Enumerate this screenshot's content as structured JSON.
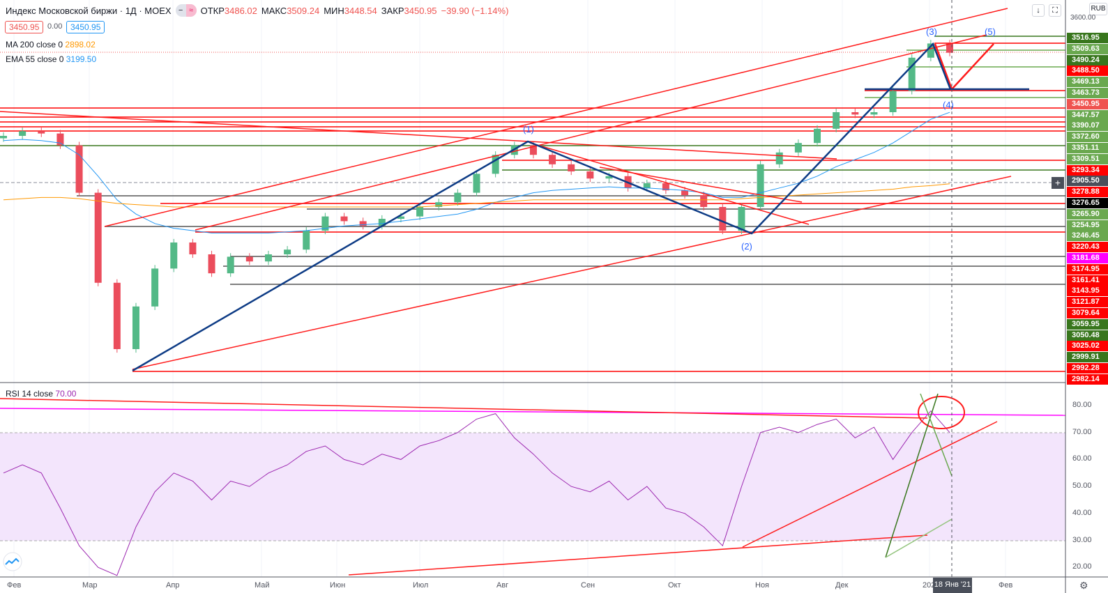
{
  "header": {
    "title": "Индекс Московской биржи · 1Д · MOEX",
    "open_label": "ОТКР",
    "open": "3486.02",
    "high_label": "МАКС",
    "high": "3509.24",
    "low_label": "МИН",
    "low": "3448.54",
    "close_label": "ЗАКР",
    "close": "3450.95",
    "change": "−39.90 (−1.14%)",
    "bid": "3450.95",
    "spread": "0.00",
    "ask": "3450.95"
  },
  "indicators": {
    "ma_label": "MA 200 close 0",
    "ma_value": "2898.02",
    "ema_label": "EMA 55 close 0",
    "ema_value": "3199.50",
    "rsi_label": "RSI 14 close",
    "rsi_value": "70.00"
  },
  "toolbar": {
    "currency": "RUB",
    "down_icon": "arrow-down-icon",
    "fullscreen_icon": "fullscreen-icon"
  },
  "colors": {
    "up": "#53b987",
    "down": "#eb4d5c",
    "ma": "#ff9800",
    "ema": "#2196f3",
    "rsi": "#9c27b0",
    "rsi_band": "#f3e5fc",
    "wave": "#0d3b85",
    "trend": "#ff1a1a"
  },
  "price_axis": {
    "top_tick": "3600.00",
    "labels": [
      {
        "v": "3516.95",
        "c": "#38761d"
      },
      {
        "v": "3509.63",
        "c": "#6aa84f"
      },
      {
        "v": "3490.24",
        "c": "#38761d"
      },
      {
        "v": "3488.50",
        "c": "#ff0000"
      },
      {
        "v": "3469.13",
        "c": "#6aa84f"
      },
      {
        "v": "3463.73",
        "c": "#6aa84f"
      },
      {
        "v": "3450.95",
        "c": "#ef5350"
      },
      {
        "v": "3447.57",
        "c": "#6aa84f"
      },
      {
        "v": "3390.07",
        "c": "#6aa84f"
      },
      {
        "v": "3372.60",
        "c": "#6aa84f"
      },
      {
        "v": "3351.11",
        "c": "#6aa84f"
      },
      {
        "v": "3309.51",
        "c": "#6aa84f"
      },
      {
        "v": "3293.34",
        "c": "#ff0000"
      },
      {
        "v": "2905.50",
        "c": "#4a4f5a"
      },
      {
        "v": "3278.88",
        "c": "#ff0000"
      },
      {
        "v": "3276.65",
        "c": "#000000"
      },
      {
        "v": "3265.90",
        "c": "#6aa84f"
      },
      {
        "v": "3254.95",
        "c": "#6aa84f"
      },
      {
        "v": "3246.45",
        "c": "#6aa84f"
      },
      {
        "v": "3220.43",
        "c": "#ff0000"
      },
      {
        "v": "3181.68",
        "c": "#ff00ff"
      },
      {
        "v": "3174.95",
        "c": "#ff0000"
      },
      {
        "v": "3161.41",
        "c": "#ff0000"
      },
      {
        "v": "3143.95",
        "c": "#ff0000"
      },
      {
        "v": "3121.87",
        "c": "#ff0000"
      },
      {
        "v": "3079.64",
        "c": "#ff0000"
      },
      {
        "v": "3059.95",
        "c": "#38761d"
      },
      {
        "v": "3050.48",
        "c": "#38761d"
      },
      {
        "v": "3025.02",
        "c": "#ff0000"
      },
      {
        "v": "2999.91",
        "c": "#38761d"
      },
      {
        "v": "2992.28",
        "c": "#ff0000"
      },
      {
        "v": "2982.14",
        "c": "#ff0000"
      }
    ]
  },
  "rsi_axis": [
    "80.00",
    "70.00",
    "60.00",
    "50.00",
    "40.00",
    "30.00",
    "20.00"
  ],
  "time_axis": [
    "Фев",
    "Мар",
    "Апр",
    "Май",
    "Июн",
    "Июл",
    "Авг",
    "Сен",
    "Окт",
    "Ноя",
    "Дек",
    "2021",
    "Фев"
  ],
  "crosshair_date": "18 Янв '21",
  "waves": [
    "(1)",
    "(2)",
    "(3)",
    "(4)",
    "(5)"
  ],
  "chart_data": {
    "type": "candlestick",
    "interval": "weekly approximation",
    "ylim": [
      2100,
      3600
    ],
    "close": [
      3100,
      3120,
      3110,
      3060,
      2860,
      2480,
      2200,
      2380,
      2540,
      2650,
      2600,
      2520,
      2590,
      2570,
      2600,
      2620,
      2700,
      2760,
      2740,
      2720,
      2750,
      2760,
      2800,
      2820,
      2860,
      2940,
      3020,
      3060,
      3020,
      2980,
      2950,
      2920,
      2930,
      2880,
      2900,
      2870,
      2850,
      2800,
      2700,
      2800,
      2980,
      3030,
      3070,
      3130,
      3200,
      3190,
      3200,
      3290,
      3430,
      3490,
      3450.95
    ],
    "ema55": [
      3080,
      3085,
      3080,
      3070,
      3020,
      2930,
      2830,
      2770,
      2730,
      2710,
      2700,
      2690,
      2690,
      2690,
      2690,
      2695,
      2700,
      2710,
      2720,
      2725,
      2730,
      2740,
      2750,
      2760,
      2770,
      2790,
      2820,
      2840,
      2860,
      2870,
      2875,
      2880,
      2885,
      2880,
      2880,
      2875,
      2870,
      2860,
      2840,
      2840,
      2860,
      2880,
      2900,
      2930,
      2970,
      3000,
      3030,
      3070,
      3120,
      3170,
      3199.5
    ],
    "ma200": [
      2830,
      2835,
      2840,
      2840,
      2835,
      2825,
      2815,
      2810,
      2805,
      2800,
      2800,
      2800,
      2800,
      2800,
      2800,
      2800,
      2800,
      2800,
      2800,
      2800,
      2800,
      2800,
      2800,
      2805,
      2810,
      2815,
      2820,
      2825,
      2830,
      2830,
      2830,
      2830,
      2830,
      2830,
      2830,
      2830,
      2830,
      2830,
      2830,
      2835,
      2840,
      2845,
      2850,
      2855,
      2860,
      2865,
      2870,
      2875,
      2885,
      2890,
      2898.02
    ],
    "rsi": [
      55,
      58,
      55,
      42,
      28,
      20,
      17,
      35,
      48,
      55,
      52,
      45,
      52,
      50,
      55,
      58,
      63,
      65,
      60,
      58,
      62,
      60,
      65,
      67,
      70,
      75,
      77,
      68,
      62,
      55,
      50,
      48,
      52,
      45,
      50,
      42,
      40,
      35,
      28,
      50,
      70,
      72,
      70,
      73,
      75,
      68,
      72,
      60,
      70,
      78,
      70
    ],
    "rsi_ylim": [
      17,
      86
    ],
    "rsi_band": [
      30,
      70
    ]
  }
}
